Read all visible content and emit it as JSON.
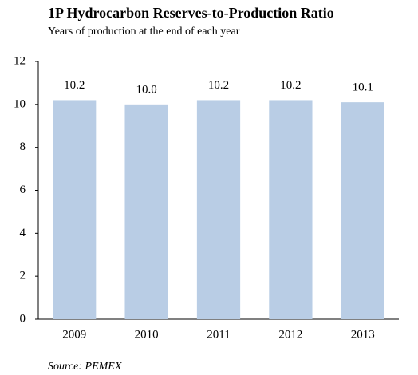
{
  "chart_data": {
    "type": "bar",
    "title": "1P Hydrocarbon Reserves-to-Production Ratio",
    "subtitle": "Years of production at the end of each year",
    "categories": [
      "2009",
      "2010",
      "2011",
      "2012",
      "2013"
    ],
    "values": [
      10.2,
      10,
      10.2,
      10.2,
      10.1
    ],
    "value_labels": [
      "10.2",
      "10.0",
      "10.2",
      "10.2",
      "10.1"
    ],
    "color": "#b9cde5",
    "ylim": [
      0,
      12
    ],
    "yticks": [
      0,
      2,
      4,
      6,
      8,
      10,
      12
    ],
    "grid": false,
    "source": "Source: PEMEX"
  }
}
